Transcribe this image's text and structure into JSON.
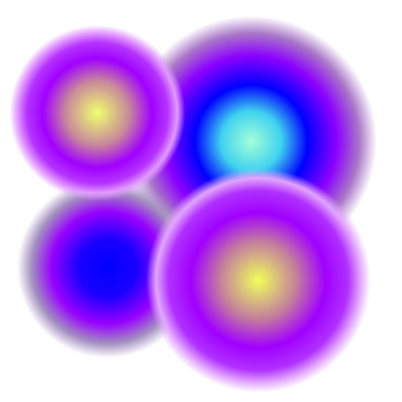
{
  "image": {
    "background_color": "#ffffff",
    "orbs": [
      {
        "id": "orb-top-right",
        "colors": [
          "#a4ffd8",
          "#3fd2f0",
          "#0000ff",
          "#8b00ff",
          "#a977c8"
        ]
      },
      {
        "id": "orb-bottom-left",
        "colors": [
          "#0000ff",
          "#1a00ff",
          "#9600ff",
          "#a38fc0"
        ]
      },
      {
        "id": "orb-top-left",
        "colors": [
          "#f0ff6e",
          "#c88a9a",
          "#a000ff",
          "#b533ff",
          "#e29aff"
        ]
      },
      {
        "id": "orb-bottom-right",
        "colors": [
          "#f0ff5a",
          "#c4809c",
          "#a000ff",
          "#b030ff",
          "#e3a6ff"
        ]
      }
    ]
  }
}
